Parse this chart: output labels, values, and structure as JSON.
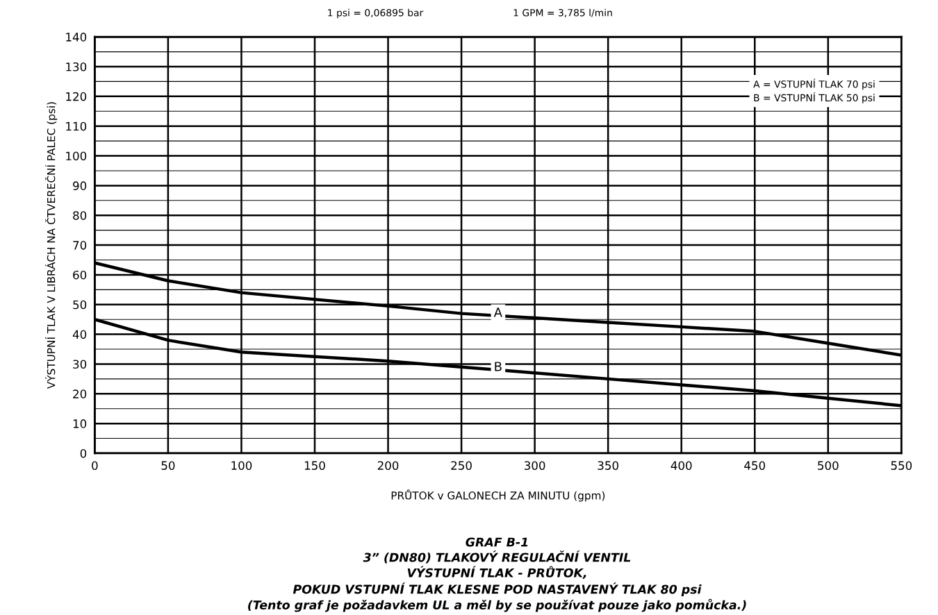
{
  "chart_data": {
    "type": "line",
    "title": "GRAF B-1\n3” (DN80) TLAKOVÝ REGULAČNÍ VENTIL\nVÝSTUPNÍ TLAK - PRŮTOK,\nPOKUD VSTUPNÍ TLAK KLESNE POD NASTAVENÝ TLAK 80 psi\n(Tento graf je požadavkem UL a měl by se používat pouze jako pomůcka.)",
    "xlabel": "PRŮTOK v GALONECH ZA MINUTU (gpm)",
    "ylabel": "VÝSTUPNÍ TLAK V LIBRÁCH NA ČTVEREČNÍ PALEC (psi)",
    "annotations": [
      "1 psi = 0,06895 bar",
      "1 GPM = 3,785 l/min",
      "A = VSTUPNÍ TLAK 70 psi\nB = VSTUPNÍ TLAK 50 psi"
    ],
    "x": [
      0,
      50,
      100,
      200,
      250,
      300,
      350,
      400,
      450,
      500,
      550
    ],
    "series": [
      {
        "name": "A",
        "color": "#000000",
        "values": [
          64,
          58,
          54,
          49.5,
          47,
          45.5,
          44,
          42.5,
          41,
          37,
          33
        ]
      },
      {
        "name": "B",
        "color": "#000000",
        "values": [
          45,
          38,
          34,
          31,
          29,
          27,
          25,
          23,
          21,
          18.5,
          16
        ]
      }
    ],
    "xlim": [
      0,
      550
    ],
    "xticks": [
      0,
      50,
      100,
      150,
      200,
      250,
      300,
      350,
      400,
      450,
      500,
      550
    ],
    "ylim": [
      0,
      140
    ],
    "yticks": [
      0,
      {
        "value": 5,
        "label": null
      },
      10,
      {
        "value": 15,
        "label": null
      },
      20,
      {
        "value": 25,
        "label": null
      },
      30,
      {
        "value": 35,
        "label": null
      },
      40,
      {
        "value": 45,
        "label": null
      },
      50,
      {
        "value": 55,
        "label": null
      },
      60,
      {
        "value": 65,
        "label": null
      },
      70,
      {
        "value": 75,
        "label": null
      },
      80,
      {
        "value": 85,
        "label": null
      },
      90,
      {
        "value": 95,
        "label": null
      },
      100,
      {
        "value": 105,
        "label": null
      },
      110,
      {
        "value": 115,
        "label": null
      },
      120,
      {
        "value": 125,
        "label": null
      },
      130,
      {
        "value": 135,
        "label": null
      },
      140
    ],
    "grid": true,
    "legend": false,
    "line_style": "solid",
    "marker": "none"
  }
}
